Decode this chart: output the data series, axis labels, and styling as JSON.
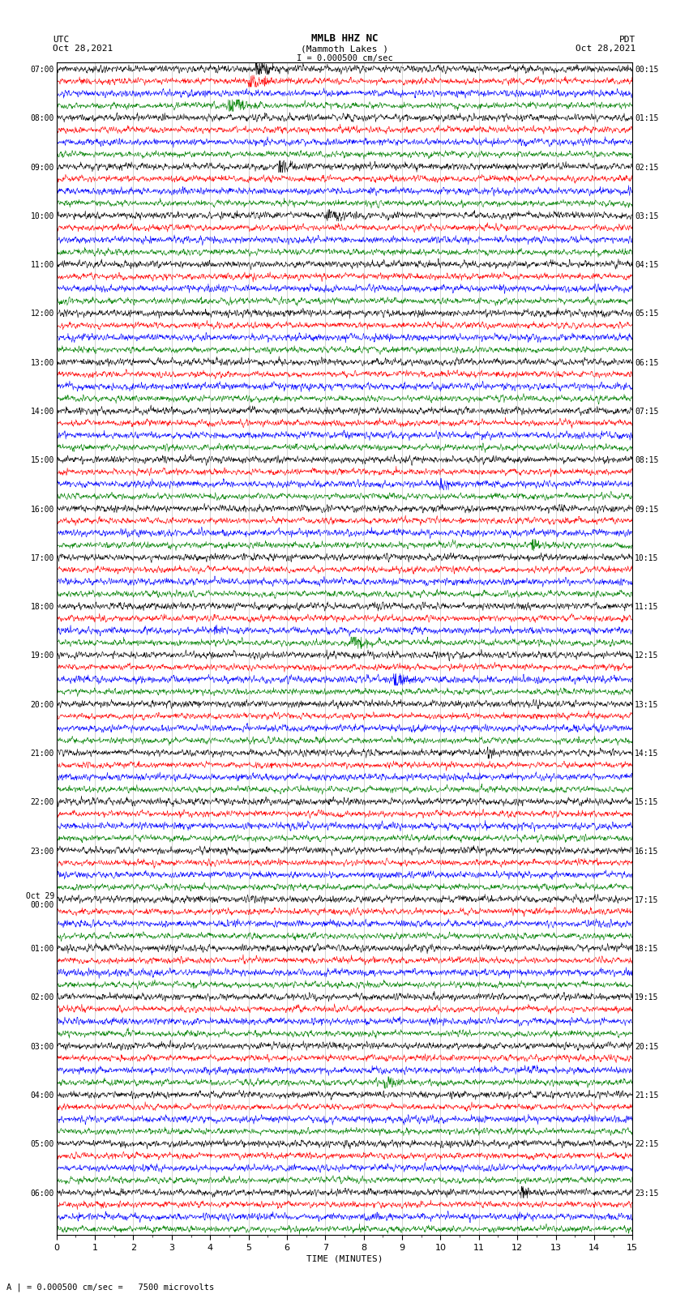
{
  "title_line1": "MMLB HHZ NC",
  "title_line2": "(Mammoth Lakes )",
  "scale_label": "I = 0.000500 cm/sec",
  "bottom_label": "A | = 0.000500 cm/sec =   7500 microvolts",
  "xlabel": "TIME (MINUTES)",
  "left_label_top": "UTC",
  "left_label_date": "Oct 28,2021",
  "right_label_top": "PDT",
  "right_label_date": "Oct 28,2021",
  "left_hour_labels": [
    "07:00",
    "08:00",
    "09:00",
    "10:00",
    "11:00",
    "12:00",
    "13:00",
    "14:00",
    "15:00",
    "16:00",
    "17:00",
    "18:00",
    "19:00",
    "20:00",
    "21:00",
    "22:00",
    "23:00",
    "Oct 29\n00:00",
    "01:00",
    "02:00",
    "03:00",
    "04:00",
    "05:00",
    "06:00"
  ],
  "right_hour_labels": [
    "00:15",
    "01:15",
    "02:15",
    "03:15",
    "04:15",
    "05:15",
    "06:15",
    "07:15",
    "08:15",
    "09:15",
    "10:15",
    "11:15",
    "12:15",
    "13:15",
    "14:15",
    "15:15",
    "16:15",
    "17:15",
    "18:15",
    "19:15",
    "20:15",
    "21:15",
    "22:15",
    "23:15"
  ],
  "colors": [
    "black",
    "red",
    "blue",
    "green"
  ],
  "background_color": "white",
  "num_hours": 24,
  "traces_per_hour": 4,
  "minutes_per_row": 15,
  "x_ticks": [
    0,
    1,
    2,
    3,
    4,
    5,
    6,
    7,
    8,
    9,
    10,
    11,
    12,
    13,
    14,
    15
  ],
  "seed": 42,
  "linewidth": 0.4
}
